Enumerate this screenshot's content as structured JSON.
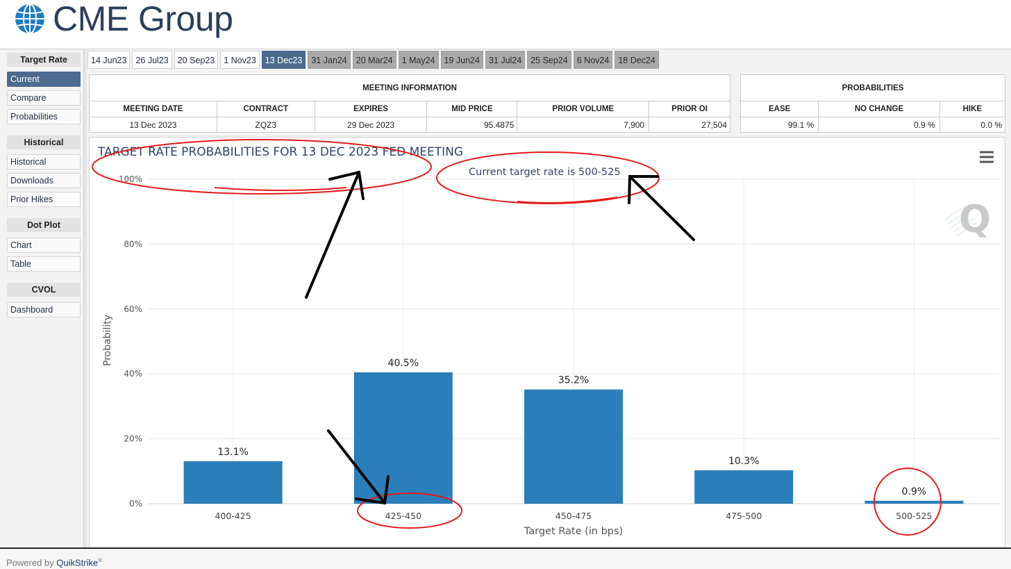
{
  "header": {
    "logo_text": "CME Group"
  },
  "sidebar": {
    "groups": [
      {
        "title": "Target Rate",
        "items": [
          "Current",
          "Compare",
          "Probabilities"
        ]
      },
      {
        "title": "Historical",
        "items": [
          "Historical",
          "Downloads",
          "Prior Hikes"
        ]
      },
      {
        "title": "Dot Plot",
        "items": [
          "Chart",
          "Table"
        ]
      },
      {
        "title": "CVOL",
        "items": [
          "Dashboard"
        ]
      }
    ]
  },
  "tabs": [
    "14 Jun23",
    "26 Jul23",
    "20 Sep23",
    "1 Nov23",
    "13 Dec23",
    "31 Jan24",
    "20 Mar24",
    "1 May24",
    "19 Jun24",
    "31 Jul24",
    "25 Sep24",
    "6 Nov24",
    "18 Dec24"
  ],
  "meeting_info": {
    "title": "MEETING INFORMATION",
    "headers": [
      "MEETING DATE",
      "CONTRACT",
      "EXPIRES",
      "MID PRICE",
      "PRIOR VOLUME",
      "PRIOR OI"
    ],
    "row": [
      "13 Dec 2023",
      "ZQZ3",
      "29 Dec 2023",
      "95.4875",
      "7,900",
      "27,504"
    ]
  },
  "probabilities": {
    "title": "PROBABILITIES",
    "headers": [
      "EASE",
      "NO CHANGE",
      "HIKE"
    ],
    "row": [
      "99.1 %",
      "0.9 %",
      "0.0 %"
    ]
  },
  "chart_data": {
    "type": "bar",
    "title": "TARGET RATE PROBABILITIES FOR 13 DEC 2023 FED MEETING",
    "subtitle": "Current target rate is 500-525",
    "xlabel": "Target Rate (in bps)",
    "ylabel": "Probability",
    "categories": [
      "400-425",
      "425-450",
      "450-475",
      "475-500",
      "500-525"
    ],
    "values": [
      13.1,
      40.5,
      35.2,
      10.3,
      0.9
    ],
    "data_labels": [
      "13.1%",
      "40.5%",
      "35.2%",
      "10.3%",
      "0.9%"
    ],
    "ylim": [
      0,
      100
    ],
    "yticks": [
      "0%",
      "20%",
      "40%",
      "60%",
      "80%",
      "100%"
    ],
    "bar_color": "#2a7fba",
    "grid": true,
    "menu_icon": "hamburger-menu-icon",
    "watermark_icon": "quikstrike-q-icon"
  },
  "annotation_color": "#e51b1b",
  "footer": {
    "prefix": "Powered by ",
    "brand": "QuikStrike",
    "mark": "®"
  }
}
